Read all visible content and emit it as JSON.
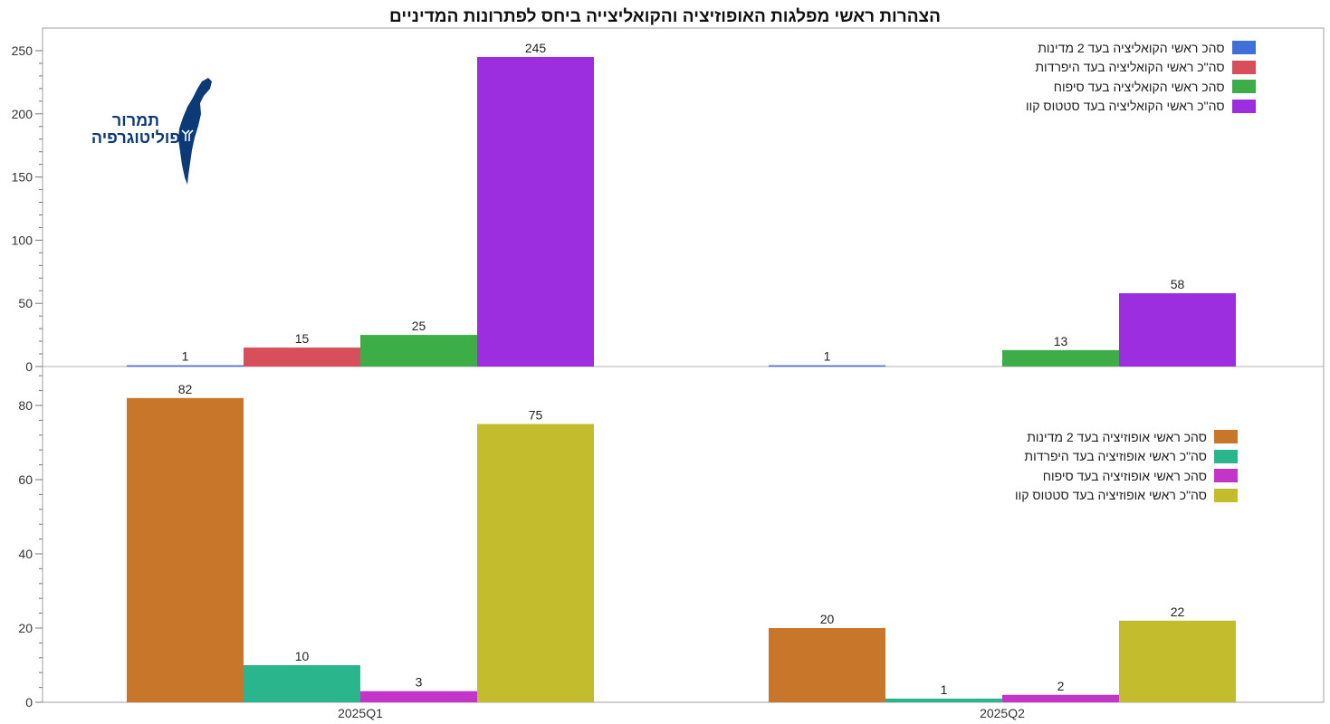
{
  "title": "הצהרות ראשי מפלגות האופוזיציה והקואליצייה ביחס לפתרונות המדיניים",
  "logo": {
    "line1": "תמרור",
    "line2": "פוליטוגרפיה"
  },
  "chart_data": [
    {
      "type": "bar",
      "categories": [
        "2025Q1",
        "2025Q2"
      ],
      "ylim": [
        0,
        255
      ],
      "yticks": [
        0,
        50,
        100,
        150,
        200,
        250
      ],
      "legend_position": "top-right",
      "grid": false,
      "series": [
        {
          "name": "סהכ ראשי הקואליציה בעד 2 מדינות",
          "color": "#3f6fd8",
          "values": [
            1,
            1
          ]
        },
        {
          "name": "סה\"כ ראשי הקואליציה בעד היפרדות",
          "color": "#d64f5a",
          "values": [
            15,
            null
          ]
        },
        {
          "name": "סהכ ראשי הקואליציה בעד סיפוח",
          "color": "#3cad47",
          "values": [
            25,
            13
          ]
        },
        {
          "name": "סה\"כ ראשי הקואליציה בעד סטטוס קוו",
          "color": "#9d2ee0",
          "values": [
            245,
            58
          ]
        }
      ]
    },
    {
      "type": "bar",
      "categories": [
        "2025Q1",
        "2025Q2"
      ],
      "ylim": [
        0,
        88
      ],
      "yticks": [
        0,
        20,
        40,
        60,
        80
      ],
      "legend_position": "right",
      "grid": false,
      "series": [
        {
          "name": "סהכ ראשי אופוזיציה בעד 2 מדינות",
          "color": "#c8762a",
          "values": [
            82,
            20
          ]
        },
        {
          "name": "סה\"כ ראשי אופוזיציה בעד היפרדות",
          "color": "#2bb58c",
          "values": [
            10,
            1
          ]
        },
        {
          "name": "סהכ ראשי אופוזיציה בעד סיפוח",
          "color": "#c235c8",
          "values": [
            3,
            2
          ]
        },
        {
          "name": "סה\"כ ראשי אופוזיציה בעד סטטוס קוו",
          "color": "#c3bd2d",
          "values": [
            75,
            22
          ]
        }
      ]
    }
  ]
}
